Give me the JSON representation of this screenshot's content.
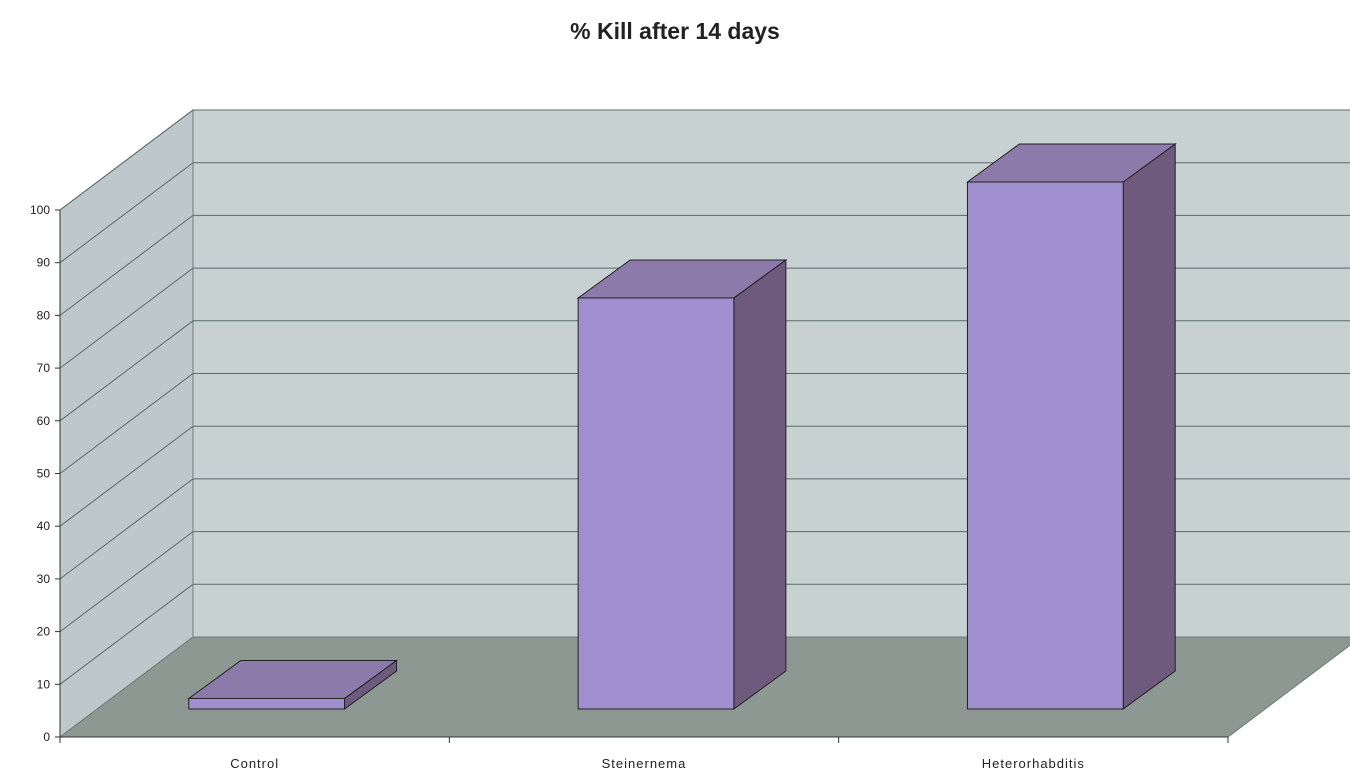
{
  "chart_data": {
    "type": "bar",
    "title": "% Kill after 14 days",
    "xlabel": "",
    "ylabel": "",
    "categories": [
      "Control",
      "Steinernema",
      "Heterorhabditis"
    ],
    "series": [
      {
        "values": [
          2,
          78,
          100
        ]
      }
    ],
    "ylim": [
      0,
      100
    ],
    "yticks": [
      0,
      10,
      20,
      30,
      40,
      50,
      60,
      70,
      80,
      90,
      100
    ],
    "grid": true,
    "legend": "none",
    "style": "3d",
    "colors": {
      "bar_front": "#a08fcf",
      "bar_top": "#8c7aaa",
      "bar_side": "#6e5a7c",
      "wall": "#c7d1d2",
      "side_wall": "#bcc8c9",
      "floor": "#8e9893"
    }
  }
}
